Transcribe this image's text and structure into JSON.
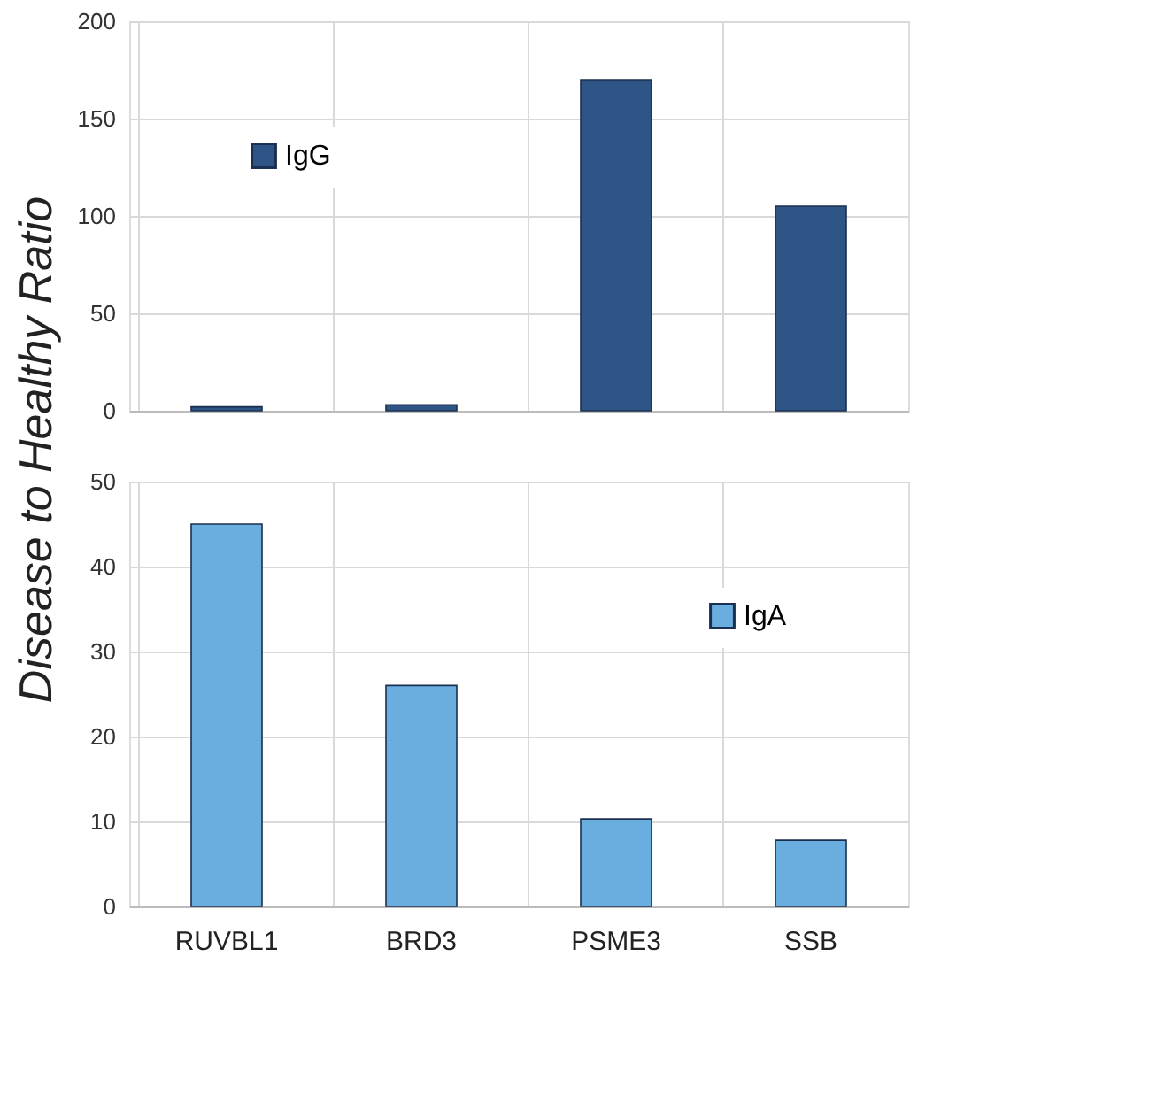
{
  "chart_data": [
    {
      "type": "bar",
      "ylabel": "Disease to Healthy Ratio",
      "categories": [
        null,
        null,
        null,
        null
      ],
      "series": [
        {
          "name": "IgG",
          "color": "#2e5586",
          "values": [
            2,
            3,
            170,
            105
          ]
        }
      ],
      "ylim": [
        0,
        200
      ],
      "yticks": [
        0,
        50,
        100,
        150,
        200
      ],
      "grid": true,
      "legend": "top left",
      "tick_labels": "y"
    },
    {
      "type": "bar",
      "categories": [
        "RUVBL1",
        "BRD3",
        "PSME3",
        "SSB"
      ],
      "series": [
        {
          "name": "IgA",
          "color": "#6aaee0",
          "values": [
            45,
            26,
            10.3,
            7.8
          ]
        }
      ],
      "ylim": [
        0,
        50
      ],
      "yticks": [
        0,
        10,
        20,
        30,
        40,
        50
      ],
      "grid": true,
      "legend": "top right"
    }
  ]
}
